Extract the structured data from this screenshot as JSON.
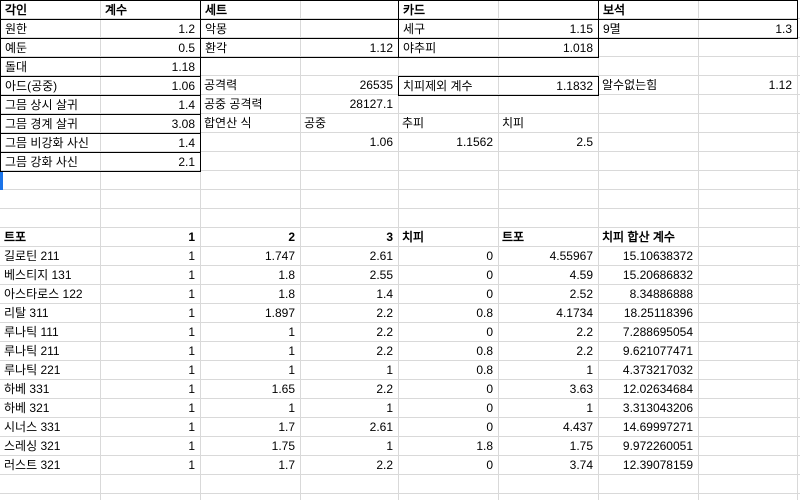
{
  "colors": {
    "selection_accent": "#1a73e8",
    "border_black": "#000000",
    "grid_line": "#d9d9d9"
  },
  "engraving_table": {
    "title": "각인",
    "value_header": "계수",
    "rows": [
      {
        "label": "원한",
        "value": "1.2"
      },
      {
        "label": "예둔",
        "value": "0.5"
      },
      {
        "label": "돌대",
        "value": "1.18"
      },
      {
        "label": "아드(공중)",
        "value": "1.06"
      },
      {
        "label": "그믐 상시 살귀",
        "value": "1.4"
      },
      {
        "label": "그믐 경계 살귀",
        "value": "3.08"
      },
      {
        "label": "그믐 비강화 사신",
        "value": "1.4"
      },
      {
        "label": "그믐 강화 사신",
        "value": "2.1"
      }
    ]
  },
  "set_block": {
    "title": "세트",
    "rows": [
      {
        "label": "악몽",
        "value": ""
      },
      {
        "label": "환각",
        "value": "1.12"
      }
    ]
  },
  "card_block": {
    "title": "카드",
    "rows": [
      {
        "label": "세구",
        "value": "1.15"
      },
      {
        "label": "야추피",
        "value": "1.018"
      }
    ]
  },
  "gem_block": {
    "title": "보석",
    "rows": [
      {
        "label": "9멸",
        "value": "1.3"
      }
    ]
  },
  "stats": {
    "attack_label": "공격력",
    "attack_value": "26535",
    "air_attack_label": "공중 공격력",
    "air_attack_value": "28127.1",
    "formula_label": "합연산 식",
    "formula_col1_header": "공중",
    "formula_col2_header": "추피",
    "formula_col3_header": "치피",
    "formula_col1_value": "1.06",
    "formula_col2_value": "1.1562",
    "formula_col3_value": "2.5"
  },
  "crit_excluded": {
    "label": "치피제외 계수",
    "value": "1.1832"
  },
  "unknown_power": {
    "label": "알수없는힘",
    "value": "1.12"
  },
  "skill_table": {
    "headers": [
      "트포",
      "1",
      "2",
      "3",
      "치피",
      "트포",
      "치피 합산 계수"
    ],
    "rows": [
      {
        "name": "길로틴 211",
        "values": [
          "1",
          "1.747",
          "2.61",
          "0",
          "4.55967",
          "15.10638372"
        ]
      },
      {
        "name": "베스티지 131",
        "values": [
          "1",
          "1.8",
          "2.55",
          "0",
          "4.59",
          "15.20686832"
        ]
      },
      {
        "name": "아스타로스 122",
        "values": [
          "1",
          "1.8",
          "1.4",
          "0",
          "2.52",
          "8.34886888"
        ]
      },
      {
        "name": "리탈 311",
        "values": [
          "1",
          "1.897",
          "2.2",
          "0.8",
          "4.1734",
          "18.25118396"
        ]
      },
      {
        "name": "루나틱 111",
        "values": [
          "1",
          "1",
          "2.2",
          "0",
          "2.2",
          "7.288695054"
        ]
      },
      {
        "name": "루나틱 211",
        "values": [
          "1",
          "1",
          "2.2",
          "0.8",
          "2.2",
          "9.621077471"
        ]
      },
      {
        "name": "루나틱 221",
        "values": [
          "1",
          "1",
          "1",
          "0.8",
          "1",
          "4.373217032"
        ]
      },
      {
        "name": "하베 331",
        "values": [
          "1",
          "1.65",
          "2.2",
          "0",
          "3.63",
          "12.02634684"
        ]
      },
      {
        "name": "하베 321",
        "values": [
          "1",
          "1",
          "1",
          "0",
          "1",
          "3.313043206"
        ]
      },
      {
        "name": "시너스 331",
        "values": [
          "1",
          "1.7",
          "2.61",
          "0",
          "4.437",
          "14.69997271"
        ]
      },
      {
        "name": "스레싱 321",
        "values": [
          "1",
          "1.75",
          "1",
          "1.8",
          "1.75",
          "9.972260051"
        ]
      },
      {
        "name": "러스트 321",
        "values": [
          "1",
          "1.7",
          "2.2",
          "0",
          "3.74",
          "12.39078159"
        ]
      }
    ]
  }
}
